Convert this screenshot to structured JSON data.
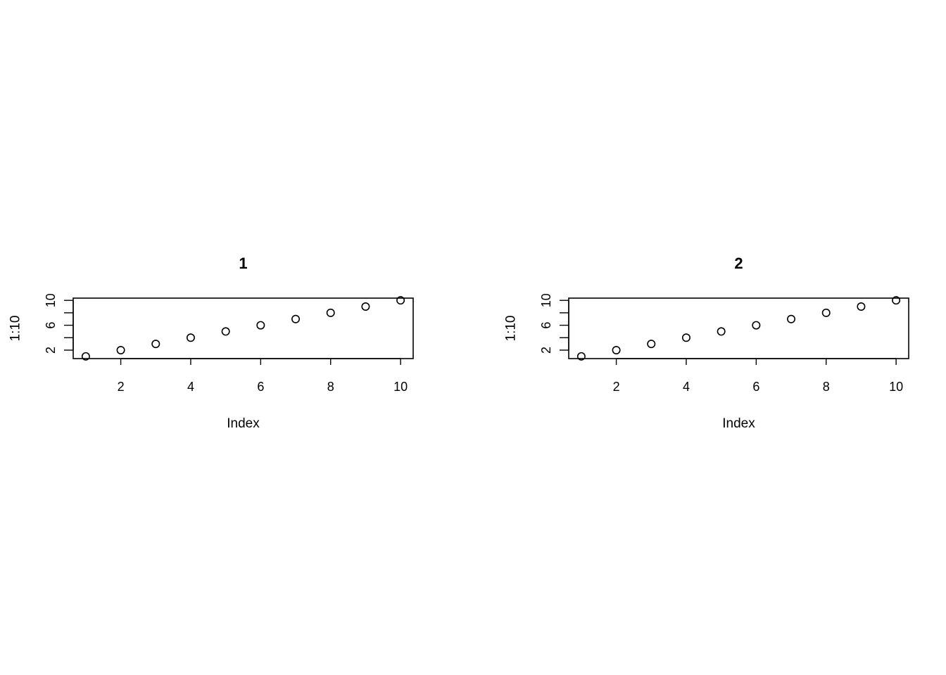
{
  "chart_data": [
    {
      "type": "scatter",
      "title": "1",
      "xlabel": "Index",
      "ylabel": "1:10",
      "x": [
        1,
        2,
        3,
        4,
        5,
        6,
        7,
        8,
        9,
        10
      ],
      "y": [
        1,
        2,
        3,
        4,
        5,
        6,
        7,
        8,
        9,
        10
      ],
      "xlim": [
        0.64,
        10.36
      ],
      "ylim": [
        0.64,
        10.36
      ],
      "xticks": [
        2,
        4,
        6,
        8,
        10
      ],
      "yticks": [
        2,
        6,
        10
      ],
      "ytick_minor": [
        4,
        8
      ],
      "grid": false,
      "marker": "open-circle",
      "color": "#000000"
    },
    {
      "type": "scatter",
      "title": "2",
      "xlabel": "Index",
      "ylabel": "1:10",
      "x": [
        1,
        2,
        3,
        4,
        5,
        6,
        7,
        8,
        9,
        10
      ],
      "y": [
        1,
        2,
        3,
        4,
        5,
        6,
        7,
        8,
        9,
        10
      ],
      "xlim": [
        0.64,
        10.36
      ],
      "ylim": [
        0.64,
        10.36
      ],
      "xticks": [
        2,
        4,
        6,
        8,
        10
      ],
      "yticks": [
        2,
        6,
        10
      ],
      "ytick_minor": [
        4,
        8
      ],
      "grid": false,
      "marker": "open-circle",
      "color": "#000000"
    }
  ]
}
